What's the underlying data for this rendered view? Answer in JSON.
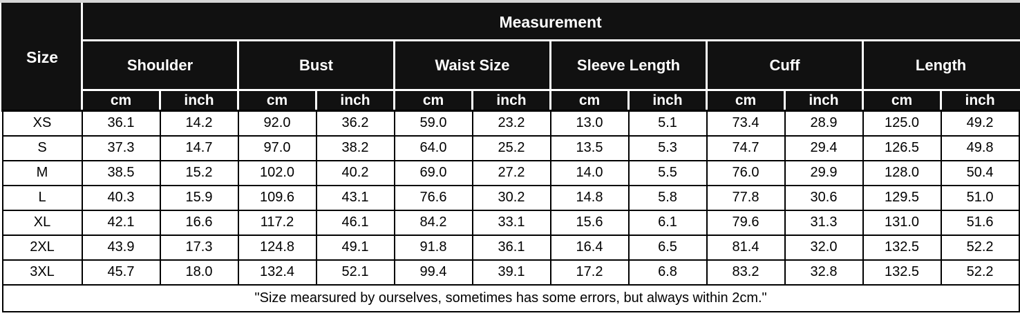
{
  "chart_data": {
    "type": "table",
    "title": "Measurement",
    "corner_header": "Size",
    "column_groups": [
      {
        "label": "Shoulder",
        "units": [
          "cm",
          "inch"
        ]
      },
      {
        "label": "Bust",
        "units": [
          "cm",
          "inch"
        ]
      },
      {
        "label": "Waist Size",
        "units": [
          "cm",
          "inch"
        ]
      },
      {
        "label": "Sleeve Length",
        "units": [
          "cm",
          "inch"
        ]
      },
      {
        "label": "Cuff",
        "units": [
          "cm",
          "inch"
        ]
      },
      {
        "label": "Length",
        "units": [
          "cm",
          "inch"
        ]
      }
    ],
    "rows": [
      {
        "size": "XS",
        "values": [
          "36.1",
          "14.2",
          "92.0",
          "36.2",
          "59.0",
          "23.2",
          "13.0",
          "5.1",
          "73.4",
          "28.9",
          "125.0",
          "49.2"
        ]
      },
      {
        "size": "S",
        "values": [
          "37.3",
          "14.7",
          "97.0",
          "38.2",
          "64.0",
          "25.2",
          "13.5",
          "5.3",
          "74.7",
          "29.4",
          "126.5",
          "49.8"
        ]
      },
      {
        "size": "M",
        "values": [
          "38.5",
          "15.2",
          "102.0",
          "40.2",
          "69.0",
          "27.2",
          "14.0",
          "5.5",
          "76.0",
          "29.9",
          "128.0",
          "50.4"
        ]
      },
      {
        "size": "L",
        "values": [
          "40.3",
          "15.9",
          "109.6",
          "43.1",
          "76.6",
          "30.2",
          "14.8",
          "5.8",
          "77.8",
          "30.6",
          "129.5",
          "51.0"
        ]
      },
      {
        "size": "XL",
        "values": [
          "42.1",
          "16.6",
          "117.2",
          "46.1",
          "84.2",
          "33.1",
          "15.6",
          "6.1",
          "79.6",
          "31.3",
          "131.0",
          "51.6"
        ]
      },
      {
        "size": "2XL",
        "values": [
          "43.9",
          "17.3",
          "124.8",
          "49.1",
          "91.8",
          "36.1",
          "16.4",
          "6.5",
          "81.4",
          "32.0",
          "132.5",
          "52.2"
        ]
      },
      {
        "size": "3XL",
        "values": [
          "45.7",
          "18.0",
          "132.4",
          "52.1",
          "99.4",
          "39.1",
          "17.2",
          "6.8",
          "83.2",
          "32.8",
          "132.5",
          "52.2"
        ]
      }
    ],
    "footnote": "\"Size mearsured by ourselves, sometimes has some errors, but always within 2cm.\""
  },
  "colors": {
    "header_bg": "#111111",
    "header_text": "#ffffff",
    "body_bg": "#ffffff",
    "body_text": "#000000",
    "body_border": "#000000",
    "header_gridline": "#ffffff",
    "page_top_strip": "#d6d6d6"
  }
}
